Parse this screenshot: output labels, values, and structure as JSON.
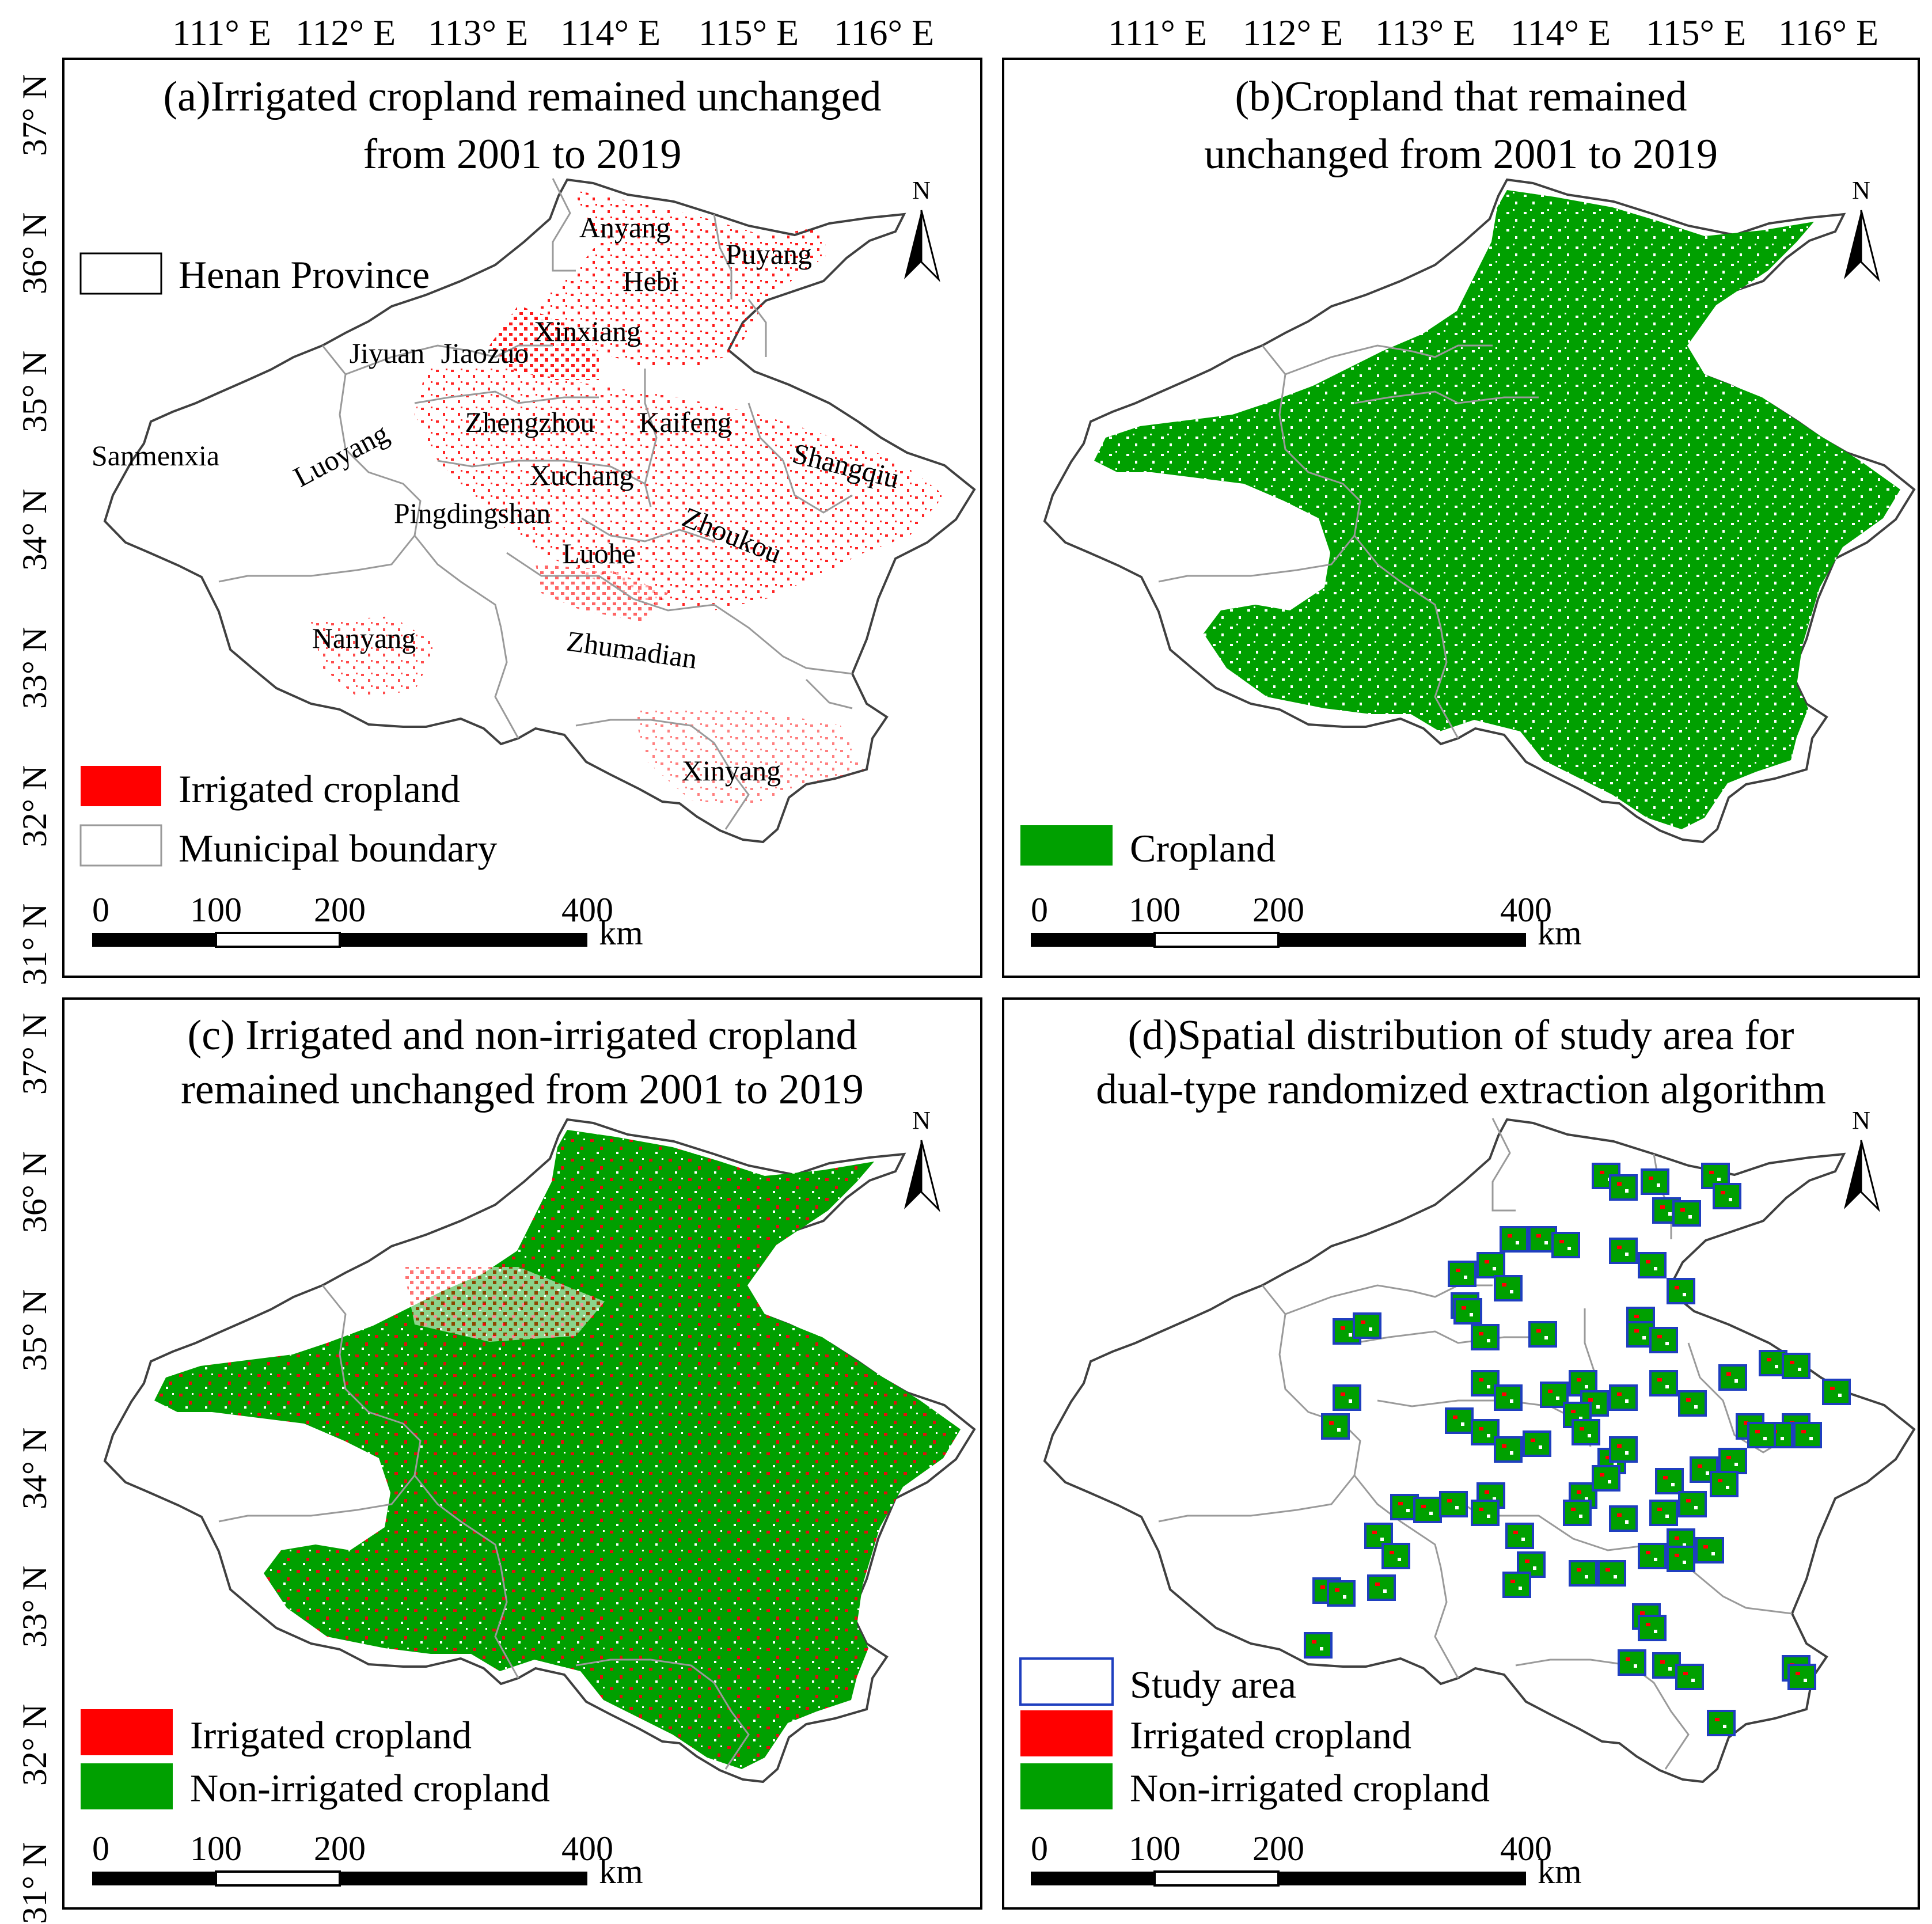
{
  "top_axis_labels": [
    "111° E",
    "112° E",
    "113° E",
    "114° E",
    "115° E",
    "116° E"
  ],
  "left_axis_labels": [
    "37° N",
    "36° N",
    "35° N",
    "34° N",
    "33° N",
    "32° N",
    "31° N"
  ],
  "colors": {
    "irrigated": "#ff0000",
    "non_irrigated": "#00a000",
    "cropland": "#00a000",
    "study_area_outline": "#1f3fbf",
    "province_outline": "#404040",
    "municipal_outline": "#9a9a9a"
  },
  "scale_bar": {
    "ticks": [
      "0",
      "100",
      "200",
      "400"
    ],
    "unit": "km"
  },
  "north_arrow_label": "N",
  "panels": [
    {
      "id": "a",
      "title_lines": [
        "(a)Irrigated cropland remained unchanged",
        "from 2001 to 2019"
      ],
      "legend_top": [
        {
          "label": "Henan Province",
          "swatch": "outline"
        }
      ],
      "legend_bottom": [
        {
          "label": "Irrigated cropland",
          "swatch": "irrigated"
        },
        {
          "label": "Municipal boundary",
          "swatch": "outline-gray"
        }
      ],
      "cities": [
        "Anyang",
        "Puyang",
        "Hebi",
        "Xinxiang",
        "Jiyuan",
        "Jiaozuo",
        "Zhengzhou",
        "Kaifeng",
        "Shangqiu",
        "Sanmenxia",
        "Luoyang",
        "Xuchang",
        "Pingdingshan",
        "Luohe",
        "Zhoukou",
        "Nanyang",
        "Zhumadian",
        "Xinyang"
      ]
    },
    {
      "id": "b",
      "title_lines": [
        "(b)Cropland that remained",
        "unchanged from 2001 to 2019"
      ],
      "legend_bottom": [
        {
          "label": "Cropland",
          "swatch": "cropland"
        }
      ]
    },
    {
      "id": "c",
      "title_lines": [
        "(c) Irrigated and non-irrigated cropland",
        "remained unchanged from 2001 to 2019"
      ],
      "legend_bottom": [
        {
          "label": "Irrigated cropland",
          "swatch": "irrigated"
        },
        {
          "label": "Non-irrigated cropland",
          "swatch": "non_irrigated"
        }
      ]
    },
    {
      "id": "d",
      "title_lines": [
        "(d)Spatial distribution of study area for",
        "dual-type randomized extraction algorithm"
      ],
      "legend_bottom": [
        {
          "label": "Study area",
          "swatch": "study"
        },
        {
          "label": "Irrigated cropland",
          "swatch": "irrigated"
        },
        {
          "label": "Non-irrigated cropland",
          "swatch": "non_irrigated"
        }
      ]
    }
  ]
}
